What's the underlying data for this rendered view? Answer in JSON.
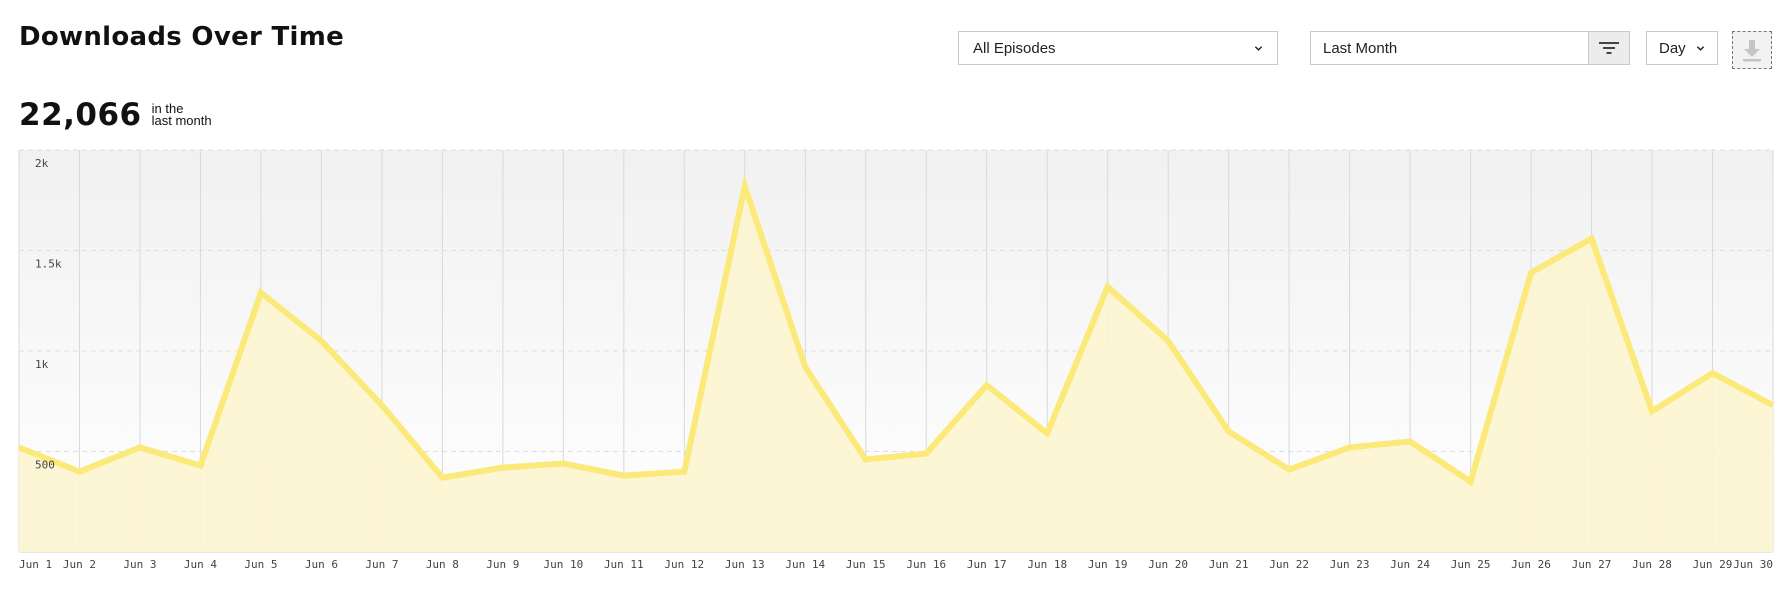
{
  "header": {
    "title": "Downloads Over Time"
  },
  "summary": {
    "total": "22,066",
    "caption_line1": "in the",
    "caption_line2": "last month"
  },
  "filters": {
    "episodes_label": "All Episodes",
    "range_label": "Last Month",
    "granularity_label": "Day"
  },
  "colors": {
    "line": "#fbe97a",
    "fill": "#fdf5cf",
    "grid_vertical": "#d9d9d9",
    "grid_horizontal": "#dedede"
  },
  "chart_data": {
    "type": "area",
    "title": "",
    "xlabel": "",
    "ylabel": "",
    "ylim": [
      0,
      2000
    ],
    "yticks": [
      500,
      1000,
      1500,
      2000
    ],
    "ytick_labels": [
      "500",
      "1k",
      "1.5k",
      "2k"
    ],
    "grid": true,
    "x": [
      "Jun 1",
      "Jun 2",
      "Jun 3",
      "Jun 4",
      "Jun 5",
      "Jun 6",
      "Jun 7",
      "Jun 8",
      "Jun 9",
      "Jun 10",
      "Jun 11",
      "Jun 12",
      "Jun 13",
      "Jun 14",
      "Jun 15",
      "Jun 16",
      "Jun 17",
      "Jun 18",
      "Jun 19",
      "Jun 20",
      "Jun 21",
      "Jun 22",
      "Jun 23",
      "Jun 24",
      "Jun 25",
      "Jun 26",
      "Jun 27",
      "Jun 28",
      "Jun 29",
      "Jun 30"
    ],
    "series": [
      {
        "values": [
          520,
          400,
          520,
          430,
          1290,
          1050,
          730,
          370,
          420,
          440,
          380,
          400,
          1820,
          920,
          460,
          490,
          830,
          590,
          1320,
          1050,
          600,
          410,
          520,
          550,
          350,
          1390,
          1560,
          700,
          890,
          730
        ]
      }
    ]
  }
}
